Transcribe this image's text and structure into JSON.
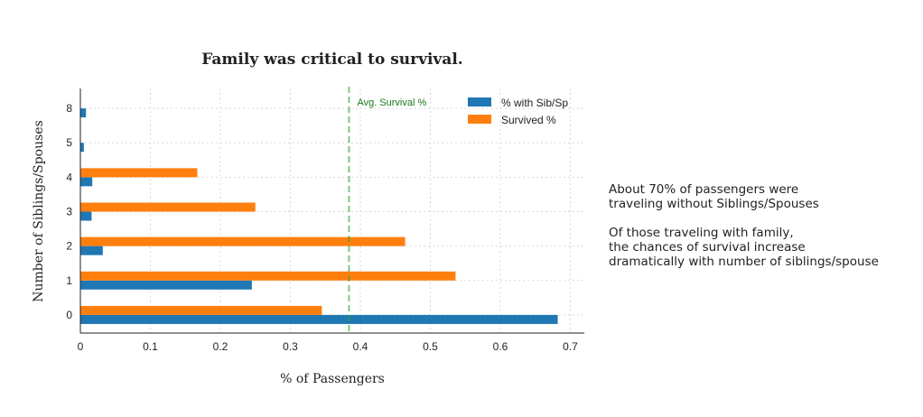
{
  "chart_data": {
    "type": "bar",
    "orientation": "horizontal",
    "title": "Family was critical to survival.",
    "xlabel": "% of Passengers",
    "ylabel": "Number of Siblings/Spouses",
    "categories": [
      "0",
      "1",
      "2",
      "3",
      "4",
      "5",
      "8"
    ],
    "series": [
      {
        "name": "% with Sib/Sp",
        "color": "#1f77b4",
        "values": [
          0.682,
          0.245,
          0.032,
          0.016,
          0.017,
          0.005,
          0.008
        ]
      },
      {
        "name": "Survived %",
        "color": "#ff7f0e",
        "values": [
          0.345,
          0.536,
          0.464,
          0.25,
          0.167,
          0.0,
          0.0
        ]
      }
    ],
    "xlim": [
      0,
      0.72
    ],
    "xticks": [
      0,
      0.1,
      0.2,
      0.3,
      0.4,
      0.5,
      0.6,
      0.7
    ],
    "xtick_labels": [
      "0",
      "0.1",
      "0.2",
      "0.3",
      "0.4",
      "0.5",
      "0.6",
      "0.7"
    ],
    "grid": true,
    "legend_position": "top-right",
    "reference_line": {
      "value": 0.3838,
      "label": "Avg. Survival %",
      "color": "#2ca02c"
    }
  },
  "annotation": {
    "paragraphs": [
      "About 70% of passengers were\ntraveling without Siblings/Spouses",
      "Of those traveling with family,\nthe chances of survival increase\ndramatically with number of siblings/spouse"
    ]
  }
}
